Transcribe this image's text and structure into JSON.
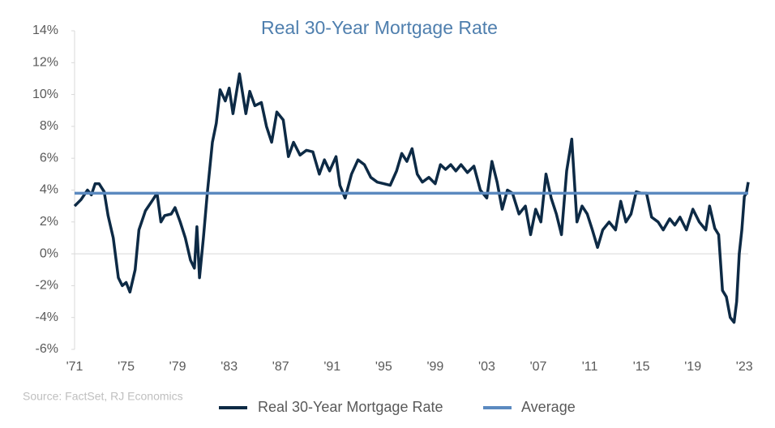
{
  "chart_data": {
    "type": "line",
    "title": "Real 30-Year Mortgage Rate",
    "source": "Source: FactSet, RJ Economics",
    "x": [
      1971.0,
      1971.5,
      1972.0,
      1972.3,
      1972.6,
      1972.9,
      1973.3,
      1973.6,
      1974.0,
      1974.4,
      1974.7,
      1975.0,
      1975.3,
      1975.7,
      1976.0,
      1976.5,
      1977.0,
      1977.4,
      1977.7,
      1978.0,
      1978.5,
      1978.8,
      1979.2,
      1979.6,
      1980.0,
      1980.3,
      1980.5,
      1980.7,
      1981.0,
      1981.3,
      1981.7,
      1982.0,
      1982.3,
      1982.7,
      1983.0,
      1983.3,
      1983.8,
      1984.3,
      1984.6,
      1985.0,
      1985.5,
      1985.9,
      1986.3,
      1986.7,
      1987.2,
      1987.6,
      1988.0,
      1988.5,
      1989.0,
      1989.5,
      1990.0,
      1990.4,
      1990.8,
      1991.3,
      1991.6,
      1992.0,
      1992.5,
      1993.0,
      1993.5,
      1994.0,
      1994.5,
      1995.0,
      1995.5,
      1996.0,
      1996.4,
      1996.8,
      1997.2,
      1997.6,
      1998.0,
      1998.5,
      1999.0,
      1999.4,
      1999.8,
      2000.2,
      2000.6,
      2001.0,
      2001.5,
      2002.0,
      2002.5,
      2003.0,
      2003.4,
      2003.8,
      2004.2,
      2004.6,
      2005.0,
      2005.5,
      2006.0,
      2006.4,
      2006.8,
      2007.2,
      2007.6,
      2008.0,
      2008.4,
      2008.8,
      2009.2,
      2009.6,
      2010.0,
      2010.4,
      2010.8,
      2011.2,
      2011.6,
      2012.0,
      2012.5,
      2013.0,
      2013.4,
      2013.8,
      2014.2,
      2014.6,
      2015.0,
      2015.4,
      2015.8,
      2016.3,
      2016.7,
      2017.2,
      2017.6,
      2018.0,
      2018.5,
      2019.0,
      2019.5,
      2020.0,
      2020.3,
      2020.7,
      2021.0,
      2021.3,
      2021.6,
      2021.9,
      2022.2,
      2022.4,
      2022.6,
      2022.8,
      2023.0,
      2023.15,
      2023.3
    ],
    "series": [
      {
        "name": "Real 30-Year Mortgage Rate",
        "color": "#0d2a45",
        "values": [
          3.0,
          3.4,
          4.0,
          3.7,
          4.4,
          4.4,
          3.9,
          2.4,
          1.0,
          -1.5,
          -2.0,
          -1.8,
          -2.4,
          -1.0,
          1.5,
          2.7,
          3.3,
          3.8,
          2.0,
          2.4,
          2.5,
          2.9,
          2.0,
          1.0,
          -0.4,
          -0.9,
          1.7,
          -1.5,
          1.0,
          3.8,
          7.0,
          8.2,
          10.3,
          9.6,
          10.4,
          8.8,
          11.3,
          8.8,
          10.2,
          9.3,
          9.5,
          8.0,
          7.0,
          8.9,
          8.4,
          6.1,
          7.0,
          6.2,
          6.5,
          6.4,
          5.0,
          5.9,
          5.2,
          6.1,
          4.3,
          3.5,
          5.0,
          5.9,
          5.6,
          4.8,
          4.5,
          4.4,
          4.3,
          5.2,
          6.3,
          5.8,
          6.6,
          5.0,
          4.5,
          4.8,
          4.4,
          5.6,
          5.3,
          5.6,
          5.2,
          5.6,
          5.1,
          5.5,
          4.0,
          3.5,
          5.8,
          4.5,
          2.8,
          4.0,
          3.8,
          2.5,
          3.0,
          1.2,
          2.8,
          2.0,
          5.0,
          3.5,
          2.5,
          1.2,
          5.2,
          7.2,
          2.0,
          3.0,
          2.5,
          1.5,
          0.4,
          1.5,
          2.0,
          1.5,
          3.3,
          2.0,
          2.5,
          3.9,
          3.8,
          3.8,
          2.3,
          2.0,
          1.5,
          2.2,
          1.8,
          2.3,
          1.5,
          2.8,
          2.0,
          1.5,
          3.0,
          1.6,
          1.2,
          -2.3,
          -2.7,
          -4.0,
          -4.3,
          -3.0,
          0.0,
          1.5,
          3.6,
          3.8,
          4.5
        ]
      }
    ],
    "average": {
      "name": "Average",
      "value": 3.8,
      "color": "#5b8ac0"
    },
    "xlim": [
      1971,
      2023.3
    ],
    "xticks": [
      {
        "value": 1971,
        "label": "'71"
      },
      {
        "value": 1975,
        "label": "'75"
      },
      {
        "value": 1979,
        "label": "'79"
      },
      {
        "value": 1983,
        "label": "'83"
      },
      {
        "value": 1987,
        "label": "'87"
      },
      {
        "value": 1991,
        "label": "'91"
      },
      {
        "value": 1995,
        "label": "'95"
      },
      {
        "value": 1999,
        "label": "'99"
      },
      {
        "value": 2003,
        "label": "'03"
      },
      {
        "value": 2007,
        "label": "'07"
      },
      {
        "value": 2011,
        "label": "'11"
      },
      {
        "value": 2015,
        "label": "'15"
      },
      {
        "value": 2019,
        "label": "'19"
      },
      {
        "value": 2023,
        "label": "'23"
      }
    ],
    "ylim": [
      -6,
      14
    ],
    "yticks": [
      {
        "value": -6,
        "label": "-6%"
      },
      {
        "value": -4,
        "label": "-4%"
      },
      {
        "value": -2,
        "label": "-2%"
      },
      {
        "value": 0,
        "label": "0%"
      },
      {
        "value": 2,
        "label": "2%"
      },
      {
        "value": 4,
        "label": "4%"
      },
      {
        "value": 6,
        "label": "6%"
      },
      {
        "value": 8,
        "label": "8%"
      },
      {
        "value": 10,
        "label": "10%"
      },
      {
        "value": 12,
        "label": "12%"
      },
      {
        "value": 14,
        "label": "14%"
      }
    ]
  }
}
